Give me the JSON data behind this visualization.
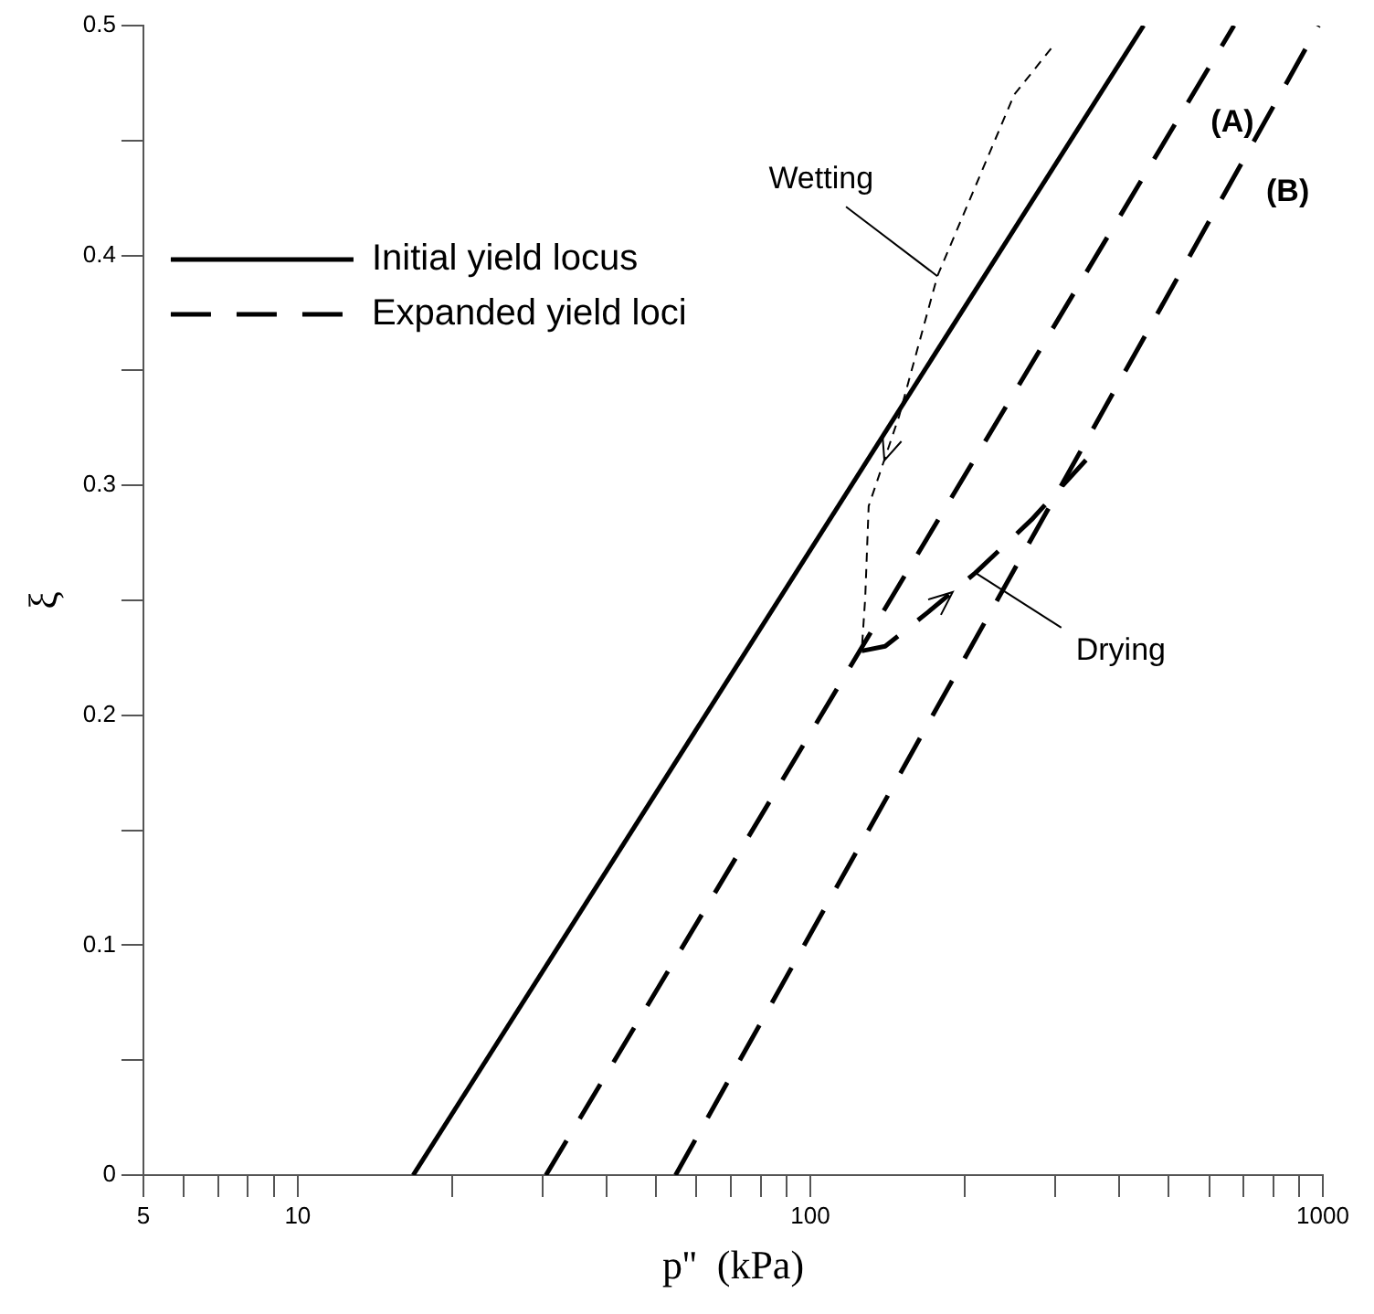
{
  "chart_data": {
    "type": "line",
    "xlabel": "p''  (kPa)",
    "ylabel": "ξ",
    "log": "x",
    "xlim": [
      5,
      1000
    ],
    "ylim": [
      0,
      0.5
    ],
    "xticks": [
      5,
      {
        "value": 6,
        "label": null
      },
      {
        "value": 7,
        "label": null
      },
      {
        "value": 8,
        "label": null
      },
      {
        "value": 9,
        "label": null
      },
      10,
      {
        "value": 20,
        "label": null
      },
      {
        "value": 30,
        "label": null
      },
      {
        "value": 40,
        "label": null
      },
      {
        "value": 50,
        "label": null
      },
      {
        "value": 60,
        "label": null
      },
      {
        "value": 70,
        "label": null
      },
      {
        "value": 80,
        "label": null
      },
      {
        "value": 90,
        "label": null
      },
      100,
      {
        "value": 200,
        "label": null
      },
      {
        "value": 300,
        "label": null
      },
      {
        "value": 400,
        "label": null
      },
      {
        "value": 500,
        "label": null
      },
      {
        "value": 600,
        "label": null
      },
      {
        "value": 700,
        "label": null
      },
      {
        "value": 800,
        "label": null
      },
      {
        "value": 900,
        "label": null
      },
      1000
    ],
    "yticks": [
      0,
      {
        "value": 0.05,
        "label": null
      },
      0.1,
      {
        "value": 0.15,
        "label": null
      },
      0.2,
      {
        "value": 0.25,
        "label": null
      },
      0.3,
      {
        "value": 0.35,
        "label": null
      },
      0.4,
      {
        "value": 0.45,
        "label": null
      },
      0.5
    ],
    "grid": false,
    "legend": "top left",
    "marker": "none",
    "series": [
      {
        "name": "Initial yield locus",
        "color": "#000000",
        "line_style": "solid",
        "x": [
          16.8,
          447
        ],
        "values": [
          0,
          0.5
        ]
      },
      {
        "name": "Expanded yield loci",
        "color": "#000000",
        "line_style": "dashed",
        "x": [
          30.5,
          671
        ],
        "values": [
          0,
          0.5
        ]
      },
      {
        "color": "#000000",
        "line_style": "dashed",
        "x": [
          54.6,
          981
        ],
        "values": [
          0,
          0.5
        ]
      },
      {
        "color": "#000000",
        "line_style": "dotted",
        "x": [
          295,
          250,
          177,
          149,
          130,
          128,
          126
        ],
        "values": [
          0.49,
          0.47,
          0.391,
          0.33,
          0.291,
          0.251,
          0.228
        ]
      },
      {
        "color": "#000000",
        "line_style": "dashed",
        "x": [
          126,
          140,
          170,
          210,
          270,
          345
        ],
        "values": [
          0.228,
          0.23,
          0.245,
          0.262,
          0.285,
          0.311
        ]
      }
    ],
    "annotations": [
      {
        "text": "Wetting",
        "x": 177,
        "y": 0.391
      },
      {
        "text": "Drying",
        "x": 210,
        "y": 0.262
      },
      "(A)",
      "(B)"
    ]
  }
}
